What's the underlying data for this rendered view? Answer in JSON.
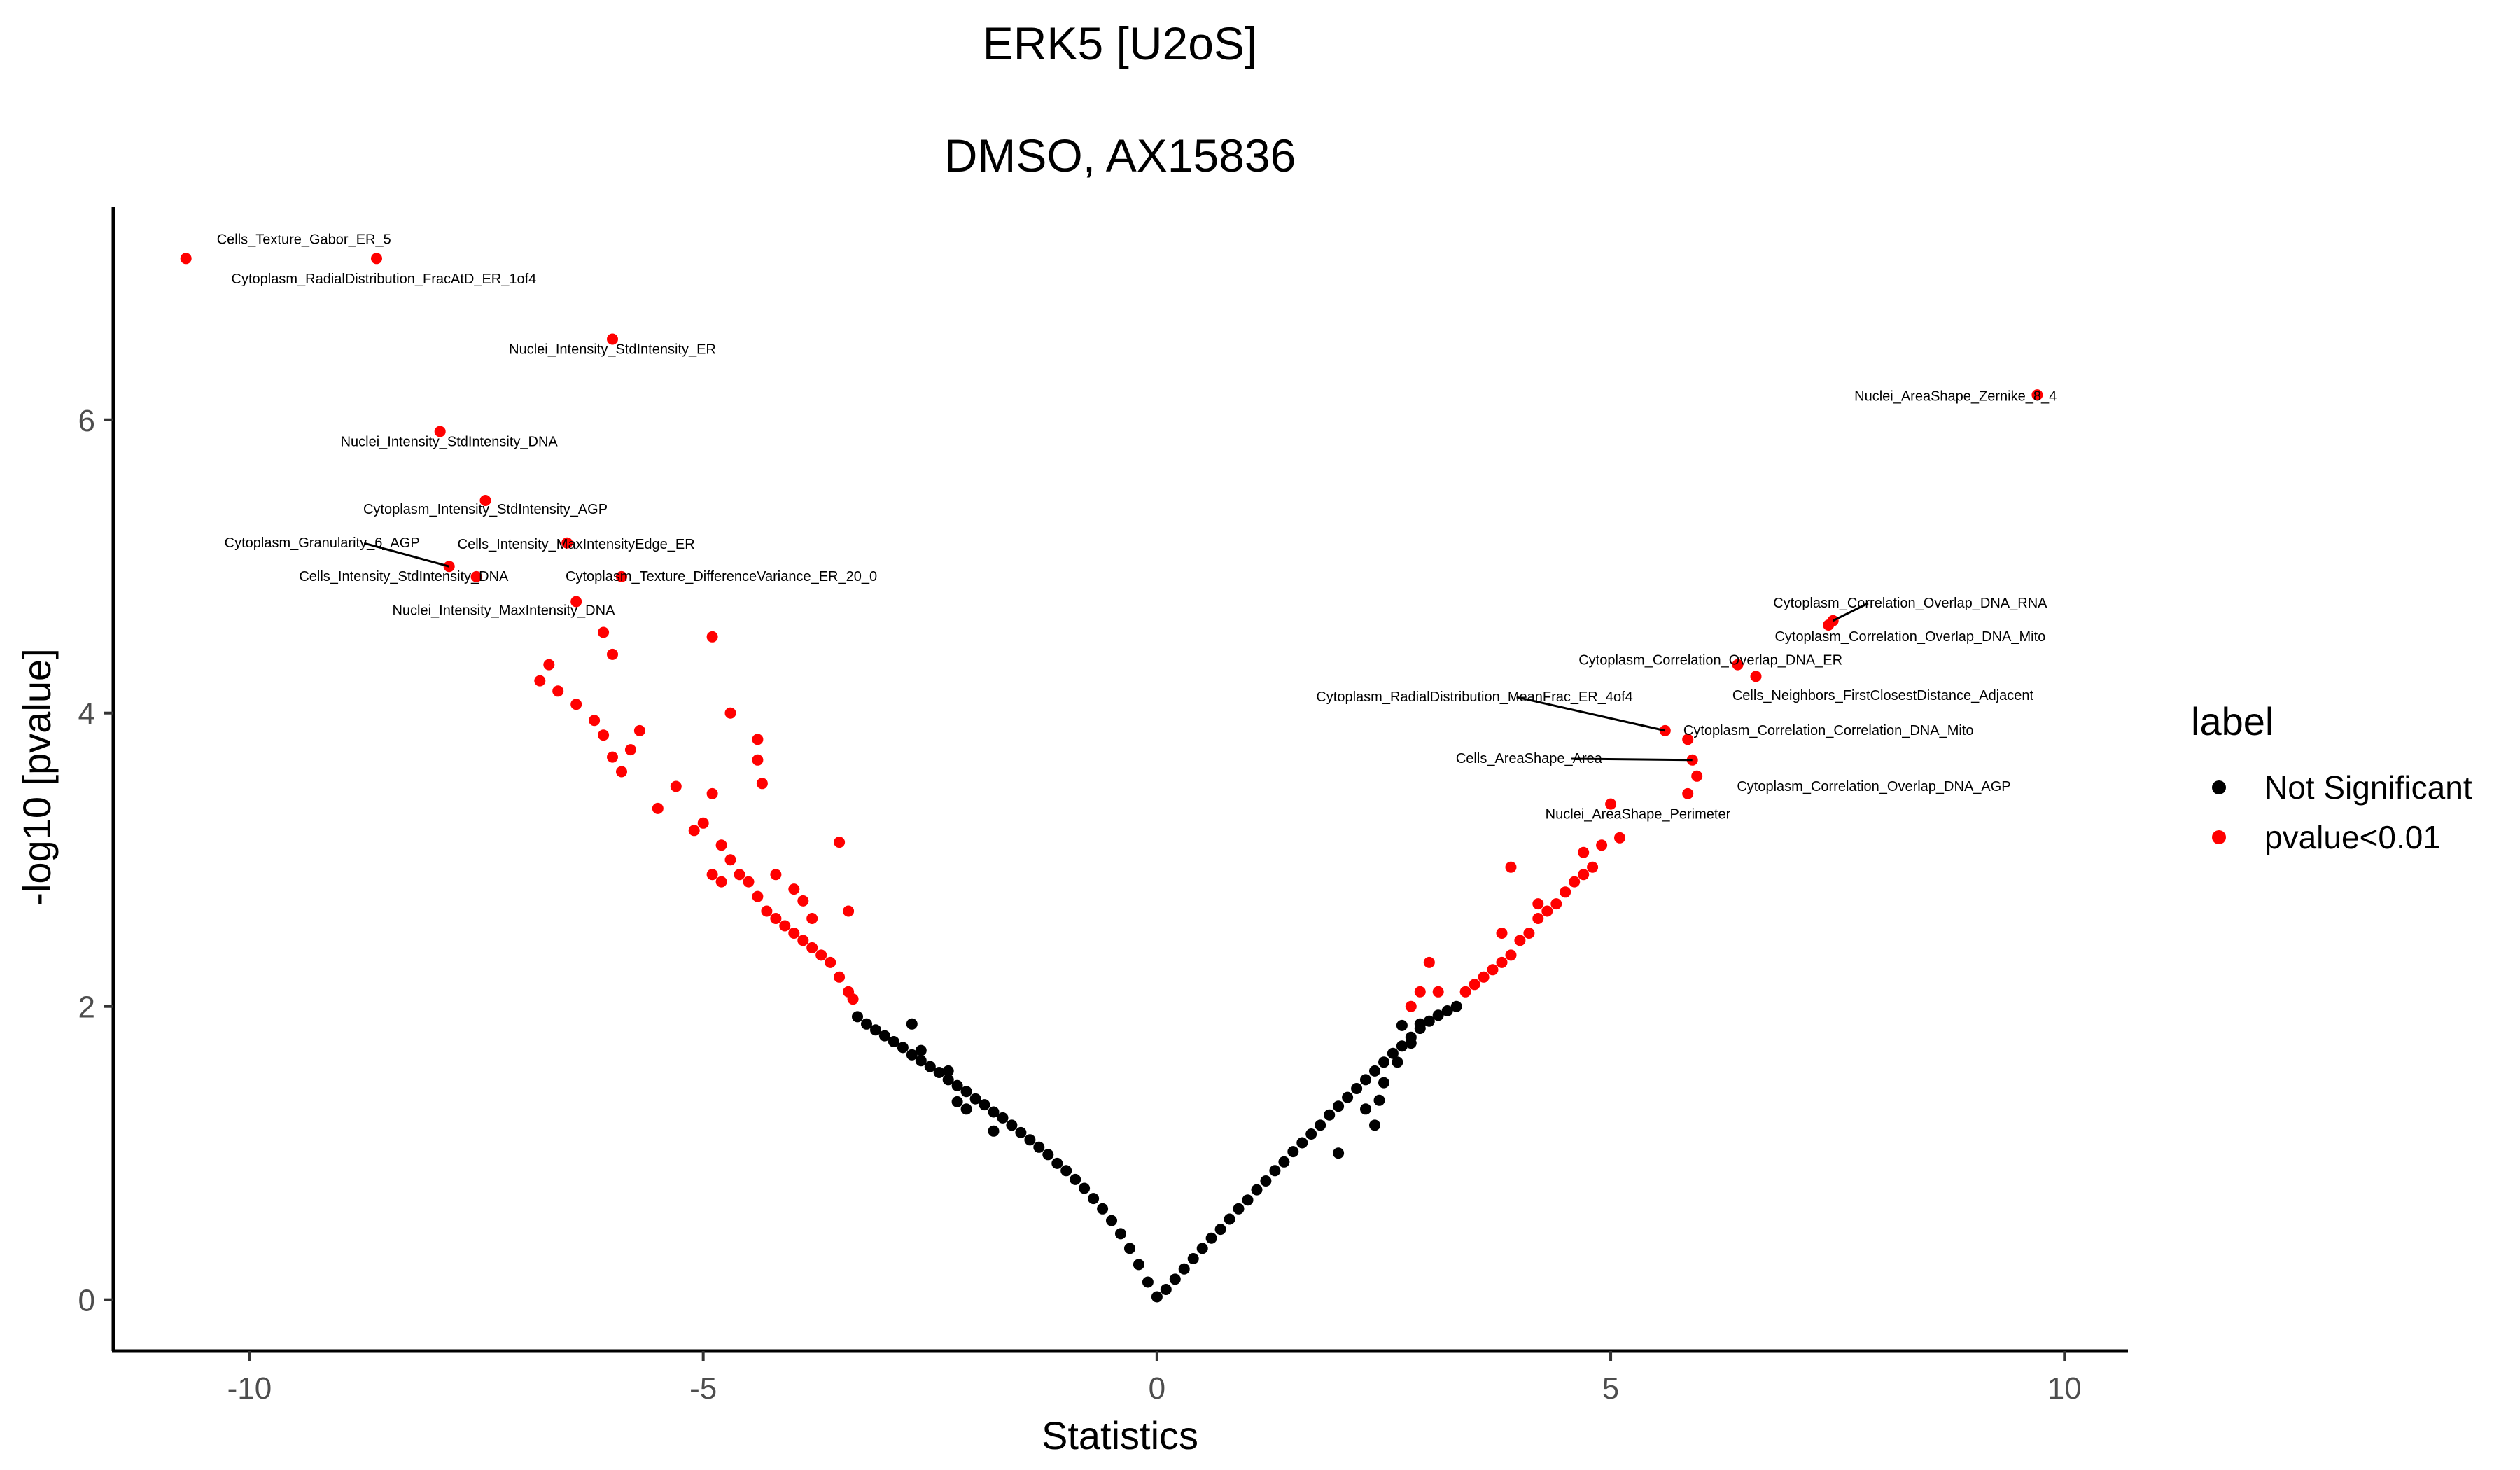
{
  "chart_data": {
    "type": "scatter",
    "title": "ERK5 [U2oS]",
    "subtitle": "DMSO, AX15836",
    "xlabel": "Statistics",
    "ylabel": "-log10 [pvalue]",
    "xlim": [
      -11.5,
      10.7
    ],
    "ylim": [
      -0.35,
      7.45
    ],
    "x_ticks": [
      -10,
      -5,
      0,
      5,
      10
    ],
    "x_tick_labels": [
      "-10",
      "-5",
      "0",
      "5",
      "10"
    ],
    "y_ticks": [
      0,
      2,
      4,
      6
    ],
    "y_tick_labels": [
      "0",
      "2",
      "4",
      "6"
    ],
    "grid": false,
    "legend": {
      "title": "label",
      "position": "right",
      "entries": [
        {
          "name": "Not Significant",
          "color": "#000000"
        },
        {
          "name": "pvalue<0.01",
          "color": "#ff0000"
        }
      ]
    },
    "series": [
      {
        "name": "Not Significant",
        "color": "#000000",
        "points": [
          [
            -3.3,
            1.93
          ],
          [
            -3.2,
            1.88
          ],
          [
            -3.1,
            1.84
          ],
          [
            -3.0,
            1.8
          ],
          [
            -2.9,
            1.76
          ],
          [
            -2.8,
            1.72
          ],
          [
            -2.7,
            1.67
          ],
          [
            -2.6,
            1.63
          ],
          [
            -2.5,
            1.59
          ],
          [
            -2.4,
            1.55
          ],
          [
            -2.3,
            1.5
          ],
          [
            -2.2,
            1.46
          ],
          [
            -2.1,
            1.42
          ],
          [
            -2.0,
            1.37
          ],
          [
            -1.9,
            1.33
          ],
          [
            -1.8,
            1.28
          ],
          [
            -1.7,
            1.24
          ],
          [
            -1.6,
            1.19
          ],
          [
            -1.5,
            1.14
          ],
          [
            -1.4,
            1.09
          ],
          [
            -1.3,
            1.04
          ],
          [
            -1.2,
            0.99
          ],
          [
            -1.1,
            0.93
          ],
          [
            -1.0,
            0.88
          ],
          [
            -0.9,
            0.82
          ],
          [
            -0.8,
            0.76
          ],
          [
            -0.7,
            0.69
          ],
          [
            -0.6,
            0.62
          ],
          [
            -0.5,
            0.54
          ],
          [
            -0.4,
            0.45
          ],
          [
            -0.3,
            0.35
          ],
          [
            -0.2,
            0.24
          ],
          [
            -0.1,
            0.12
          ],
          [
            0.0,
            0.02
          ],
          [
            0.1,
            0.07
          ],
          [
            0.2,
            0.14
          ],
          [
            0.3,
            0.21
          ],
          [
            0.4,
            0.28
          ],
          [
            0.5,
            0.35
          ],
          [
            0.6,
            0.42
          ],
          [
            0.7,
            0.48
          ],
          [
            0.8,
            0.55
          ],
          [
            0.9,
            0.62
          ],
          [
            1.0,
            0.68
          ],
          [
            1.1,
            0.75
          ],
          [
            1.2,
            0.81
          ],
          [
            1.3,
            0.88
          ],
          [
            1.4,
            0.94
          ],
          [
            1.5,
            1.01
          ],
          [
            1.6,
            1.07
          ],
          [
            1.7,
            1.13
          ],
          [
            1.8,
            1.19
          ],
          [
            1.9,
            1.26
          ],
          [
            2.0,
            1.32
          ],
          [
            2.1,
            1.38
          ],
          [
            2.2,
            1.44
          ],
          [
            2.3,
            1.5
          ],
          [
            2.4,
            1.56
          ],
          [
            2.5,
            1.62
          ],
          [
            2.6,
            1.68
          ],
          [
            2.7,
            1.73
          ],
          [
            2.8,
            1.79
          ],
          [
            2.9,
            1.85
          ],
          [
            3.0,
            1.9
          ],
          [
            3.1,
            1.94
          ],
          [
            3.2,
            1.97
          ],
          [
            3.3,
            2.0
          ],
          [
            -2.7,
            1.88
          ],
          [
            -2.6,
            1.7
          ],
          [
            -2.3,
            1.56
          ],
          [
            -2.2,
            1.35
          ],
          [
            -2.1,
            1.3
          ],
          [
            -1.8,
            1.15
          ],
          [
            2.3,
            1.3
          ],
          [
            2.4,
            1.19
          ],
          [
            2.45,
            1.36
          ],
          [
            2.5,
            1.48
          ],
          [
            2.65,
            1.62
          ],
          [
            2.7,
            1.87
          ],
          [
            2.8,
            1.75
          ],
          [
            2.9,
            1.88
          ],
          [
            2.0,
            1.0
          ]
        ]
      },
      {
        "name": "pvalue<0.01",
        "color": "#ff0000",
        "points": [
          [
            -10.7,
            7.1
          ],
          [
            -8.6,
            7.1
          ],
          [
            -6.0,
            6.55
          ],
          [
            -7.9,
            5.92
          ],
          [
            -7.4,
            5.45
          ],
          [
            -6.5,
            5.16
          ],
          [
            -7.8,
            5.0
          ],
          [
            -7.5,
            4.93
          ],
          [
            -5.9,
            4.93
          ],
          [
            -6.4,
            4.76
          ],
          [
            9.7,
            6.17
          ],
          [
            7.4,
            4.6
          ],
          [
            7.45,
            4.63
          ],
          [
            6.4,
            4.33
          ],
          [
            6.6,
            4.25
          ],
          [
            5.6,
            3.88
          ],
          [
            5.85,
            3.82
          ],
          [
            5.9,
            3.68
          ],
          [
            5.95,
            3.57
          ],
          [
            5.85,
            3.45
          ],
          [
            -6.8,
            4.22
          ],
          [
            -6.7,
            4.33
          ],
          [
            -6.6,
            4.15
          ],
          [
            -6.4,
            4.06
          ],
          [
            -6.2,
            3.95
          ],
          [
            -6.1,
            3.85
          ],
          [
            -6.0,
            3.7
          ],
          [
            -5.9,
            3.6
          ],
          [
            -5.8,
            3.75
          ],
          [
            -5.7,
            3.88
          ],
          [
            -6.1,
            4.55
          ],
          [
            -6.0,
            4.4
          ],
          [
            -5.5,
            3.35
          ],
          [
            -5.3,
            3.5
          ],
          [
            -5.1,
            3.2
          ],
          [
            -5.0,
            3.25
          ],
          [
            -4.9,
            3.45
          ],
          [
            -4.8,
            3.1
          ],
          [
            -4.7,
            3.0
          ],
          [
            -4.9,
            4.52
          ],
          [
            -4.7,
            4.0
          ],
          [
            -4.4,
            3.82
          ],
          [
            -4.4,
            3.68
          ],
          [
            -4.35,
            3.52
          ],
          [
            -3.5,
            3.12
          ],
          [
            -4.6,
            2.9
          ],
          [
            -4.5,
            2.85
          ],
          [
            -4.4,
            2.75
          ],
          [
            -4.3,
            2.65
          ],
          [
            -4.2,
            2.6
          ],
          [
            -4.1,
            2.55
          ],
          [
            -4.0,
            2.5
          ],
          [
            -3.9,
            2.45
          ],
          [
            -3.8,
            2.4
          ],
          [
            -3.7,
            2.35
          ],
          [
            -3.6,
            2.3
          ],
          [
            -3.5,
            2.2
          ],
          [
            -3.4,
            2.1
          ],
          [
            -3.35,
            2.05
          ],
          [
            -4.2,
            2.9
          ],
          [
            -4.0,
            2.8
          ],
          [
            -3.8,
            2.6
          ],
          [
            -3.4,
            2.65
          ],
          [
            -4.9,
            2.9
          ],
          [
            -4.8,
            2.85
          ],
          [
            -3.9,
            2.72
          ],
          [
            2.8,
            2.0
          ],
          [
            2.9,
            2.1
          ],
          [
            3.0,
            2.3
          ],
          [
            3.1,
            2.1
          ],
          [
            3.4,
            2.1
          ],
          [
            3.5,
            2.15
          ],
          [
            3.6,
            2.2
          ],
          [
            3.7,
            2.25
          ],
          [
            3.8,
            2.3
          ],
          [
            3.9,
            2.35
          ],
          [
            4.0,
            2.45
          ],
          [
            4.1,
            2.5
          ],
          [
            4.2,
            2.6
          ],
          [
            4.3,
            2.65
          ],
          [
            4.4,
            2.7
          ],
          [
            4.5,
            2.78
          ],
          [
            4.6,
            2.85
          ],
          [
            4.7,
            2.9
          ],
          [
            4.8,
            2.95
          ],
          [
            3.9,
            2.95
          ],
          [
            4.7,
            3.05
          ],
          [
            4.9,
            3.1
          ],
          [
            5.0,
            3.38
          ],
          [
            5.1,
            3.15
          ],
          [
            3.8,
            2.5
          ],
          [
            4.2,
            2.7
          ]
        ]
      }
    ],
    "annotations": [
      {
        "text": "Cells_Texture_Gabor_ER_5",
        "x": -8.6,
        "y": 7.1
      },
      {
        "text": "Cytoplasm_RadialDistribution_FracAtD_ER_1of4",
        "x": -10.7,
        "y": 7.1
      },
      {
        "text": "Nuclei_Intensity_StdIntensity_ER",
        "x": -6.0,
        "y": 6.55
      },
      {
        "text": "Nuclei_Intensity_StdIntensity_DNA",
        "x": -7.9,
        "y": 5.92
      },
      {
        "text": "Cytoplasm_Intensity_StdIntensity_AGP",
        "x": -7.4,
        "y": 5.45
      },
      {
        "text": "Cytoplasm_Granularity_6_AGP",
        "x": -7.8,
        "y": 5.0
      },
      {
        "text": "Cells_Intensity_MaxIntensityEdge_ER",
        "x": -6.5,
        "y": 5.16
      },
      {
        "text": "Cells_Intensity_StdIntensity_DNA",
        "x": -7.5,
        "y": 4.93
      },
      {
        "text": "Cytoplasm_Texture_DifferenceVariance_ER_20_0",
        "x": -5.9,
        "y": 4.93
      },
      {
        "text": "Nuclei_Intensity_MaxIntensity_DNA",
        "x": -6.4,
        "y": 4.76
      },
      {
        "text": "Nuclei_AreaShape_Zernike_8_4",
        "x": 9.7,
        "y": 6.17
      },
      {
        "text": "Cytoplasm_Correlation_Overlap_DNA_RNA",
        "x": 7.45,
        "y": 4.63
      },
      {
        "text": "Cytoplasm_Correlation_Overlap_DNA_Mito",
        "x": 7.4,
        "y": 4.6
      },
      {
        "text": "Cytoplasm_Correlation_Overlap_DNA_ER",
        "x": 6.4,
        "y": 4.33
      },
      {
        "text": "Cells_Neighbors_FirstClosestDistance_Adjacent",
        "x": 6.6,
        "y": 4.25
      },
      {
        "text": "Cytoplasm_RadialDistribution_MeanFrac_ER_4of4",
        "x": 5.6,
        "y": 3.88
      },
      {
        "text": "Cytoplasm_Correlation_Correlation_DNA_Mito",
        "x": 5.85,
        "y": 3.82
      },
      {
        "text": "Cells_AreaShape_Area",
        "x": 5.9,
        "y": 3.68
      },
      {
        "text": "Cytoplasm_Correlation_Overlap_DNA_AGP",
        "x": 5.95,
        "y": 3.57
      },
      {
        "text": "Nuclei_AreaShape_Perimeter",
        "x": 5.85,
        "y": 3.45
      }
    ]
  }
}
